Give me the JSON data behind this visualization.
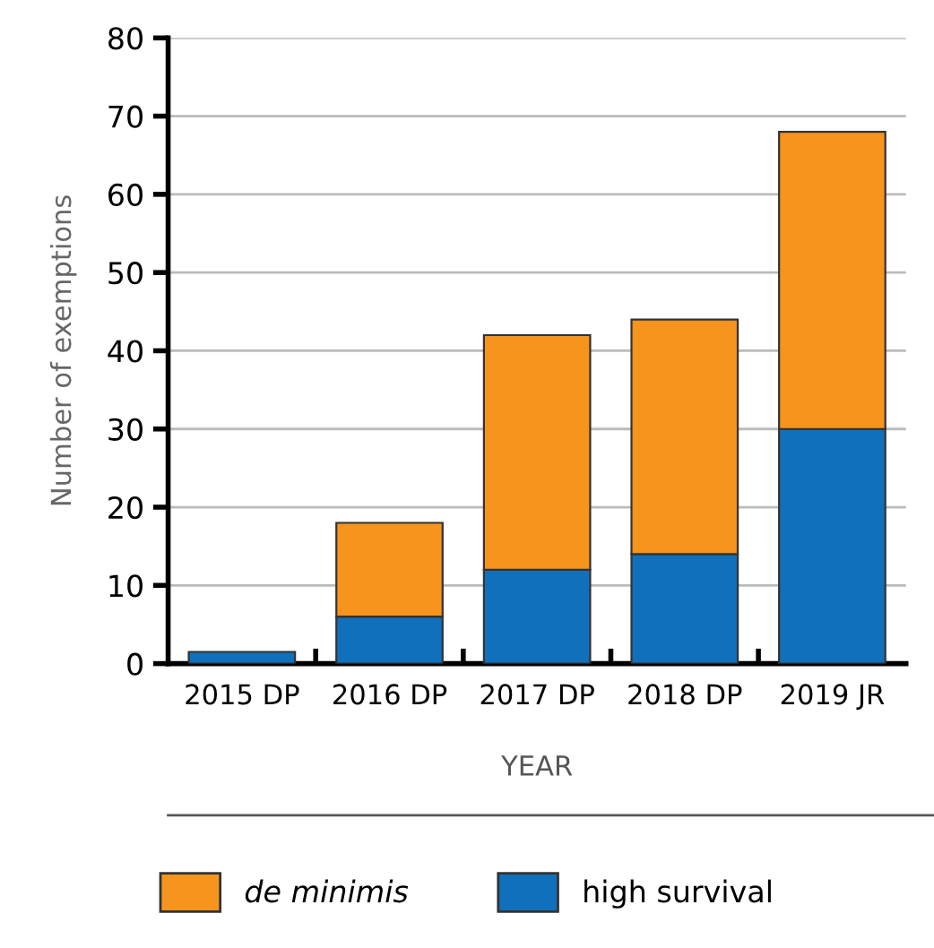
{
  "chart_data": {
    "type": "bar",
    "stacked": true,
    "xlabel": "YEAR",
    "ylabel": "Number of exemptions",
    "categories": [
      "2015 DP",
      "2016 DP",
      "2017 DP",
      "2018 DP",
      "2019 JR"
    ],
    "series": [
      {
        "name": "high survival",
        "color": "#1170bb",
        "values": [
          1.5,
          6,
          12,
          14,
          30
        ]
      },
      {
        "name": "de minimis",
        "color": "#f7941d",
        "values": [
          null,
          12,
          30,
          30,
          38
        ]
      }
    ],
    "ylim": [
      0,
      80
    ],
    "yticks": [
      0,
      10,
      20,
      30,
      40,
      50,
      60,
      70,
      80
    ],
    "grid": "y",
    "legend": "bottom"
  }
}
